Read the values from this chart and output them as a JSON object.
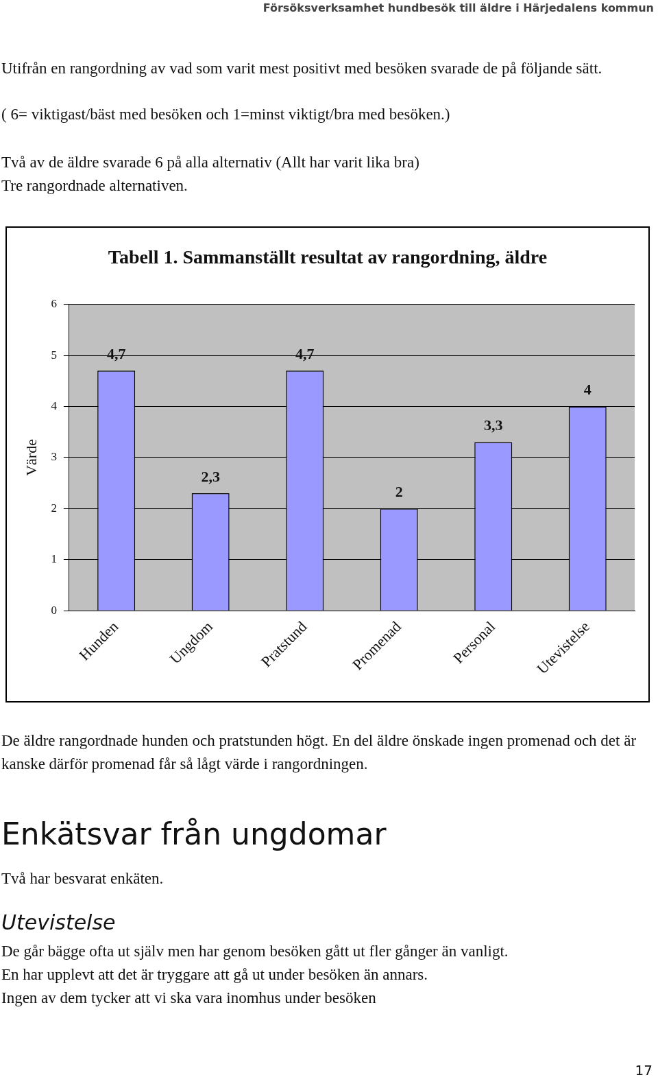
{
  "chart_data": {
    "type": "bar",
    "title": "Tabell 1. Sammanställt resultat av rangordning, äldre",
    "ylabel": "Värde",
    "categories": [
      "Hunden",
      "Ungdom",
      "Pratstund",
      "Promenad",
      "Personal",
      "Utevistelse"
    ],
    "values": [
      4.7,
      2.3,
      4.7,
      2,
      3.3,
      4
    ],
    "value_labels": [
      "4,7",
      "2,3",
      "4,7",
      "2",
      "3,3",
      "4"
    ],
    "color": "#9999ff",
    "ylim": [
      0,
      6
    ],
    "yticks": [
      0,
      1,
      2,
      3,
      4,
      5,
      6
    ],
    "grid": "y",
    "legend": false,
    "annotations": [
      "Försöksverksamhet hundbesök till äldre i Härjedalens kommun",
      "Utifrån en rangordning av vad som varit mest positivt med besöken svarade de på följande sätt.",
      "( 6= viktigast/bäst med besöken och 1=minst viktigt/bra med besöken.)",
      "Två av de äldre svarade 6 på alla alternativ (Allt har varit lika bra)",
      "Tre rangordnade alternativen.",
      "De äldre rangordnade hunden och pratstunden högt. En del äldre önskade ingen promenad och det är kanske därför promenad får så lågt värde i rangordningen.",
      "Enkätsvar från ungdomar",
      "Två har besvarat enkäten.",
      "Utevistelse",
      "De går bägge ofta ut själv men har genom besöken gått ut fler gånger än vanligt.",
      "En har upplevt att det är tryggare att gå ut under besöken än annars.",
      "Ingen av dem tycker att vi ska vara inomhus under besöken",
      "17"
    ]
  }
}
